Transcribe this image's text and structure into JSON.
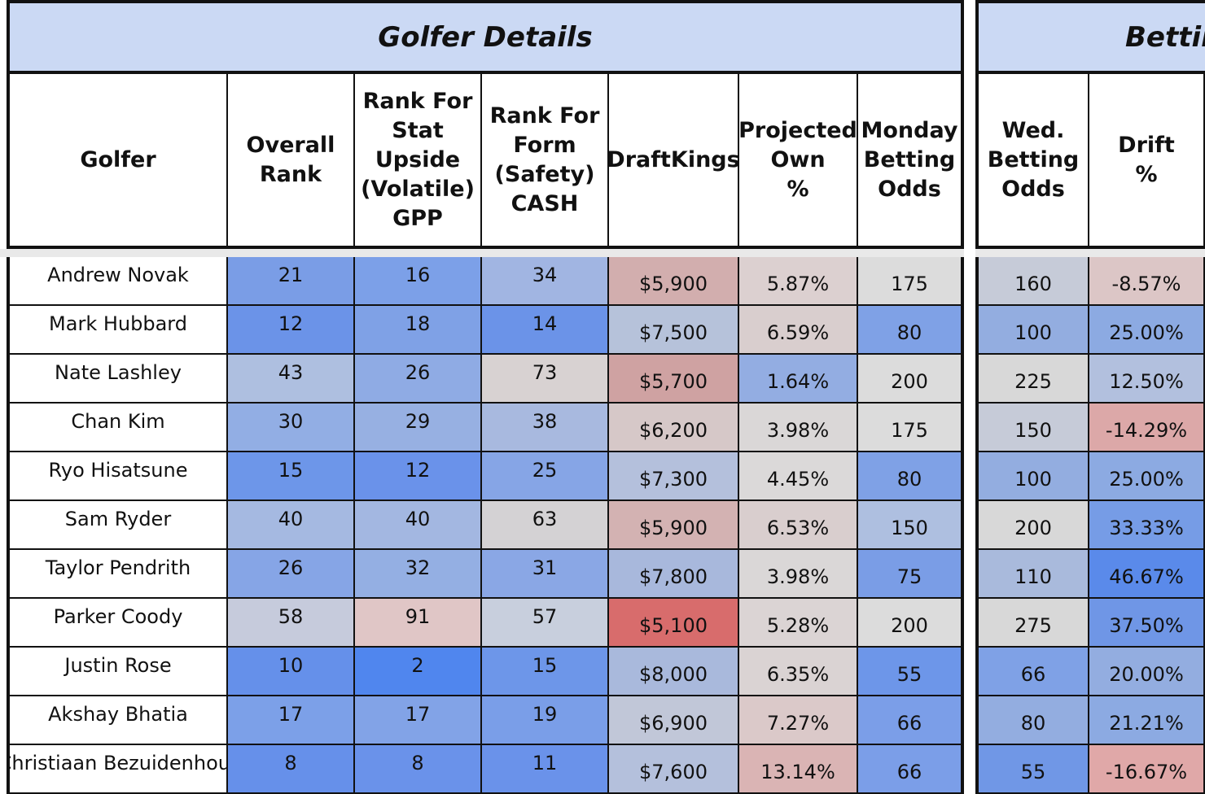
{
  "sections": [
    {
      "title": "Golfer Details"
    },
    {
      "title": "Betting"
    }
  ],
  "columns": [
    {
      "key": "golfer",
      "label": "Golfer"
    },
    {
      "key": "overall_rank",
      "label": "Overall\nRank"
    },
    {
      "key": "rank_stat",
      "label": "Rank For\nStat\nUpside\n(Volatile)\nGPP"
    },
    {
      "key": "rank_form",
      "label": "Rank For\nForm\n(Safety)\nCASH"
    },
    {
      "key": "draftkings",
      "label": "DraftKings"
    },
    {
      "key": "proj_own",
      "label": "Projected\nOwn\n%"
    },
    {
      "key": "monday_odds",
      "label": "Monday\nBetting\nOdds"
    },
    {
      "key": "wed_odds",
      "label": "Wed.\nBetting\nOdds"
    },
    {
      "key": "drift",
      "label": "Drift\n%"
    }
  ],
  "rows": [
    {
      "golfer": "Andrew Novak",
      "overall_rank": "21",
      "rank_stat": "16",
      "rank_form": "34",
      "draftkings": "$5,900",
      "proj_own": "5.87%",
      "monday_odds": "175",
      "wed_odds": "160",
      "drift": "-8.57%"
    },
    {
      "golfer": "Mark Hubbard",
      "overall_rank": "12",
      "rank_stat": "18",
      "rank_form": "14",
      "draftkings": "$7,500",
      "proj_own": "6.59%",
      "monday_odds": "80",
      "wed_odds": "100",
      "drift": "25.00%"
    },
    {
      "golfer": "Nate Lashley",
      "overall_rank": "43",
      "rank_stat": "26",
      "rank_form": "73",
      "draftkings": "$5,700",
      "proj_own": "1.64%",
      "monday_odds": "200",
      "wed_odds": "225",
      "drift": "12.50%"
    },
    {
      "golfer": "Chan Kim",
      "overall_rank": "30",
      "rank_stat": "29",
      "rank_form": "38",
      "draftkings": "$6,200",
      "proj_own": "3.98%",
      "monday_odds": "175",
      "wed_odds": "150",
      "drift": "-14.29%"
    },
    {
      "golfer": "Ryo Hisatsune",
      "overall_rank": "15",
      "rank_stat": "12",
      "rank_form": "25",
      "draftkings": "$7,300",
      "proj_own": "4.45%",
      "monday_odds": "80",
      "wed_odds": "100",
      "drift": "25.00%"
    },
    {
      "golfer": "Sam Ryder",
      "overall_rank": "40",
      "rank_stat": "40",
      "rank_form": "63",
      "draftkings": "$5,900",
      "proj_own": "6.53%",
      "monday_odds": "150",
      "wed_odds": "200",
      "drift": "33.33%"
    },
    {
      "golfer": "Taylor Pendrith",
      "overall_rank": "26",
      "rank_stat": "32",
      "rank_form": "31",
      "draftkings": "$7,800",
      "proj_own": "3.98%",
      "monday_odds": "75",
      "wed_odds": "110",
      "drift": "46.67%"
    },
    {
      "golfer": "Parker Coody",
      "overall_rank": "58",
      "rank_stat": "91",
      "rank_form": "57",
      "draftkings": "$5,100",
      "proj_own": "5.28%",
      "monday_odds": "200",
      "wed_odds": "275",
      "drift": "37.50%"
    },
    {
      "golfer": "Justin Rose",
      "overall_rank": "10",
      "rank_stat": "2",
      "rank_form": "15",
      "draftkings": "$8,000",
      "proj_own": "6.35%",
      "monday_odds": "55",
      "wed_odds": "66",
      "drift": "20.00%"
    },
    {
      "golfer": "Akshay Bhatia",
      "overall_rank": "17",
      "rank_stat": "17",
      "rank_form": "19",
      "draftkings": "$6,900",
      "proj_own": "7.27%",
      "monday_odds": "66",
      "wed_odds": "80",
      "drift": "21.21%"
    },
    {
      "golfer": "Christiaan Bezuidenhout",
      "overall_rank": "8",
      "rank_stat": "8",
      "rank_form": "11",
      "draftkings": "$7,600",
      "proj_own": "13.14%",
      "monday_odds": "66",
      "wed_odds": "55",
      "drift": "-16.67%"
    }
  ],
  "cell_colors": [
    [
      "#ffffff",
      "#7a9de6",
      "#7ca0e8",
      "#a1b5e2",
      "#d2aeae",
      "#dcd0d0",
      "#dcdcdc",
      "#c6cbd8",
      "#dcc6c6"
    ],
    [
      "#ffffff",
      "#6b93e8",
      "#7fa1e6",
      "#6b93e8",
      "#b6c2da",
      "#d9cece",
      "#7fa1e6",
      "#93ade0",
      "#8caae2"
    ],
    [
      "#ffffff",
      "#aebfe0",
      "#8fabe4",
      "#d8d2d2",
      "#cfa2a2",
      "#93ade2",
      "#dcdcdc",
      "#d8d8d8",
      "#b2c0de"
    ],
    [
      "#ffffff",
      "#92aee4",
      "#97b0e2",
      "#a8b9df",
      "#d6c8c8",
      "#dad7d7",
      "#dcdcdc",
      "#c6cbd8",
      "#dca8a8"
    ],
    [
      "#ffffff",
      "#6d96e9",
      "#6a92ea",
      "#86a5e6",
      "#b4c0dc",
      "#dbd9d9",
      "#7fa1e6",
      "#93ade0",
      "#8caae2"
    ],
    [
      "#ffffff",
      "#a5b9e1",
      "#a3b7e1",
      "#d4d2d4",
      "#d3b2b2",
      "#d9cece",
      "#aebfe0",
      "#d8d8d8",
      "#769ce6"
    ],
    [
      "#ffffff",
      "#86a5e6",
      "#94afe3",
      "#8aa7e5",
      "#a8b8dc",
      "#dad7d7",
      "#7a9de6",
      "#a9badc",
      "#5a8aea"
    ],
    [
      "#ffffff",
      "#c6cbdc",
      "#e0c6c6",
      "#c8cfdd",
      "#d86c6c",
      "#dbd4d4",
      "#dcdcdc",
      "#d8d8d8",
      "#6f96e6"
    ],
    [
      "#ffffff",
      "#6590ea",
      "#5086ee",
      "#6d96e9",
      "#a9b9dc",
      "#dad3d3",
      "#6d96e9",
      "#7fa1e6",
      "#93ade0"
    ],
    [
      "#ffffff",
      "#7ca0e8",
      "#82a3e7",
      "#7a9ee8",
      "#c1c7d8",
      "#dbc9c9",
      "#7b9ee8",
      "#93ade0",
      "#8caae2"
    ],
    [
      "#ffffff",
      "#6690ea",
      "#6a92ea",
      "#6a92ea",
      "#b4c0dc",
      "#dab4b4",
      "#7b9ee8",
      "#7097e6",
      "#e0a8a8"
    ]
  ]
}
